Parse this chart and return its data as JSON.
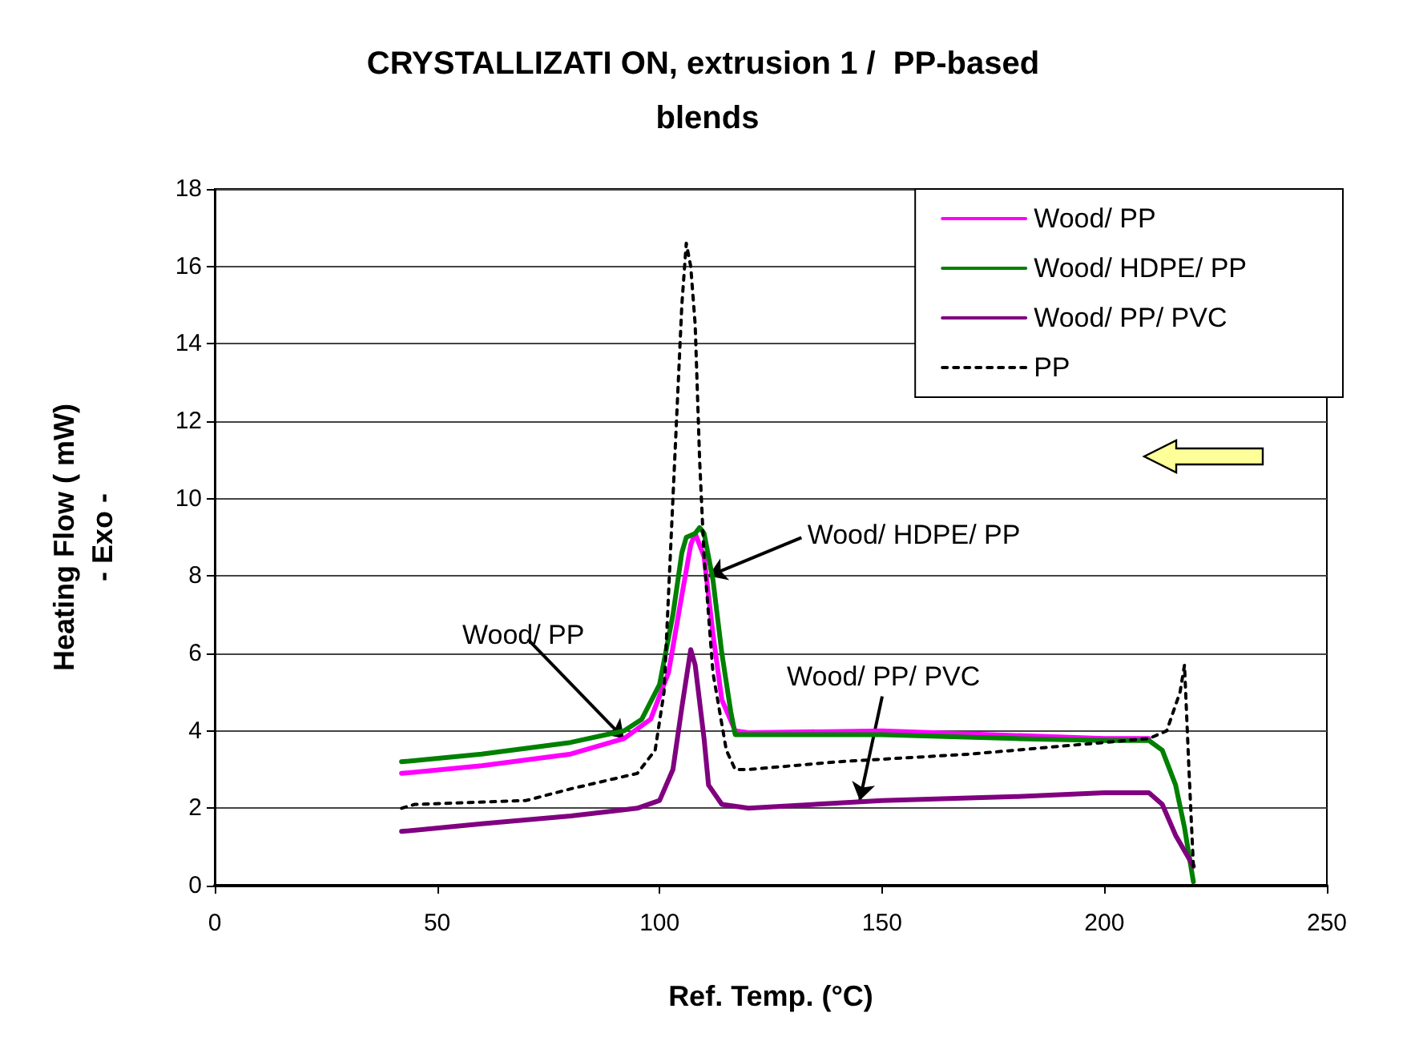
{
  "chart_data": {
    "type": "line",
    "title": "CRYSTALLIZATI ON, extrusion 1 /  PP-based blends",
    "xlabel": "Ref. Temp. (°C)",
    "ylabel": "Heating Flow ( mW)\n- Exo -",
    "xlim": [
      0,
      250
    ],
    "xticks": [
      0,
      50,
      100,
      150,
      200,
      250
    ],
    "ylim": [
      0,
      18
    ],
    "yticks": [
      0,
      2,
      4,
      6,
      8,
      10,
      12,
      14,
      16,
      18
    ],
    "grid": "y",
    "legend": "top right",
    "marker": "none",
    "annotations": [
      {
        "text": "Wood/ PP",
        "x": 92,
        "y": 3.8
      },
      {
        "text": "Wood/ HDPE/ PP",
        "x": 111,
        "y": 8.0
      },
      {
        "text": "Wood/ PP/ PVC",
        "x": 145,
        "y": 2.2
      }
    ],
    "series": [
      {
        "name": "Wood/ PP",
        "color": "#ff00ff",
        "line_style": "solid",
        "x": [
          42,
          60,
          80,
          92,
          98,
          102,
          105,
          107,
          108,
          110,
          112,
          114,
          117,
          120,
          150,
          200,
          210
        ],
        "values": [
          2.9,
          3.1,
          3.4,
          3.8,
          4.3,
          5.5,
          7.5,
          8.8,
          9.1,
          8.5,
          6.5,
          4.8,
          4.0,
          3.95,
          4.0,
          3.8,
          3.8
        ]
      },
      {
        "name": "Wood/ HDPE/ PP",
        "color": "#008000",
        "line_style": "solid",
        "x": [
          42,
          60,
          80,
          92,
          96,
          100,
          103,
          105,
          106,
          108,
          109,
          110,
          112,
          114,
          116,
          117,
          130,
          150,
          180,
          200,
          210,
          213,
          216,
          218,
          220
        ],
        "values": [
          3.2,
          3.4,
          3.7,
          4.0,
          4.3,
          5.2,
          7.0,
          8.6,
          9.0,
          9.1,
          9.25,
          9.1,
          7.9,
          6.0,
          4.5,
          3.9,
          3.9,
          3.9,
          3.8,
          3.75,
          3.75,
          3.5,
          2.6,
          1.5,
          0.1
        ]
      },
      {
        "name": "Wood/ PP/ PVC",
        "color": "#800080",
        "line_style": "solid",
        "x": [
          42,
          60,
          80,
          95,
          100,
          103,
          105,
          107,
          108,
          110,
          111,
          114,
          120,
          150,
          180,
          200,
          210,
          213,
          216,
          220
        ],
        "values": [
          1.4,
          1.6,
          1.8,
          2.0,
          2.2,
          3.0,
          4.6,
          6.1,
          5.7,
          3.8,
          2.6,
          2.1,
          2.0,
          2.2,
          2.3,
          2.4,
          2.4,
          2.1,
          1.3,
          0.5
        ]
      },
      {
        "name": "PP",
        "color": "#000000",
        "line_style": "dotted",
        "x": [
          42,
          45,
          70,
          80,
          95,
          99,
          101,
          103,
          105,
          106,
          107,
          108,
          109,
          110,
          112,
          115,
          117,
          120,
          140,
          170,
          190,
          210,
          214,
          217,
          218,
          219,
          220
        ],
        "values": [
          2.0,
          2.1,
          2.2,
          2.5,
          2.9,
          3.5,
          5,
          10,
          15,
          16.6,
          16,
          14.5,
          11,
          8.5,
          5.5,
          3.5,
          3.0,
          3.0,
          3.2,
          3.4,
          3.6,
          3.8,
          4.0,
          5.0,
          5.7,
          3.0,
          0.5
        ]
      }
    ]
  }
}
